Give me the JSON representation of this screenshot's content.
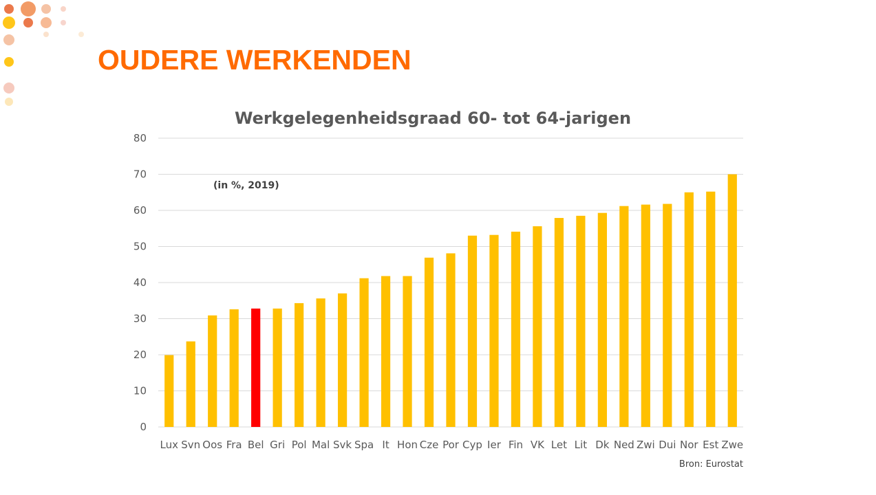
{
  "slide": {
    "title": "OUDERE WERKENDEN"
  },
  "chart_data": {
    "type": "bar",
    "title": "Werkgelegenheidsgraad 60- tot 64-jarigen",
    "subtitle": "(in %, 2019)",
    "source": "Bron: Eurostat",
    "xlabel": "",
    "ylabel": "",
    "ylim": [
      0,
      80
    ],
    "yticks": [
      "0",
      "10",
      "20",
      "30",
      "40",
      "50",
      "60",
      "70",
      "80"
    ],
    "grid": true,
    "categories": [
      "Lux",
      "Svn",
      "Oos",
      "Fra",
      "Bel",
      "Gri",
      "Pol",
      "Mal",
      "Svk",
      "Spa",
      "It",
      "Hon",
      "Cze",
      "Por",
      "Cyp",
      "Ier",
      "Fin",
      "VK",
      "Let",
      "Lit",
      "Dk",
      "Ned",
      "Zwi",
      "Dui",
      "Nor",
      "Est",
      "Zwe"
    ],
    "values": [
      19.9,
      23.7,
      30.9,
      32.6,
      32.8,
      32.8,
      34.3,
      35.6,
      37.0,
      41.2,
      41.8,
      41.8,
      46.9,
      48.1,
      53.0,
      53.2,
      54.1,
      55.6,
      57.9,
      58.5,
      59.3,
      61.2,
      61.6,
      61.8,
      65.0,
      65.2,
      70.0
    ],
    "highlight": "Bel",
    "colors": {
      "bar": "#ffc000",
      "highlight": "#ff0000"
    }
  }
}
